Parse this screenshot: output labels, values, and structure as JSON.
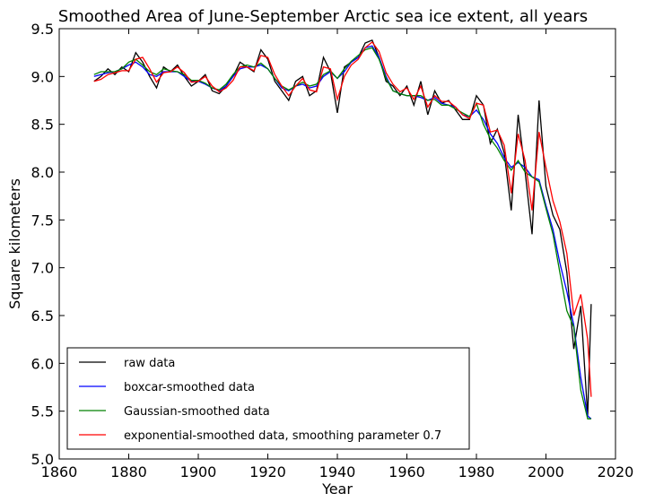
{
  "chart_data": {
    "type": "line",
    "title": "Smoothed Area of June-September   Arctic sea ice extent, all years",
    "xlabel": "Year",
    "ylabel": "Square kilometers",
    "xlim": [
      1860,
      2020
    ],
    "ylim": [
      5.0,
      9.5
    ],
    "xticks": [
      "1860",
      "1880",
      "1900",
      "1920",
      "1940",
      "1960",
      "1980",
      "2000",
      "2020"
    ],
    "yticks": [
      "5.0",
      "5.5",
      "6.0",
      "6.5",
      "7.0",
      "7.5",
      "8.0",
      "8.5",
      "9.0",
      "9.5"
    ],
    "grid": false,
    "legend_position": "lower-left",
    "x": [
      1870,
      1872,
      1874,
      1876,
      1878,
      1880,
      1882,
      1884,
      1886,
      1888,
      1890,
      1892,
      1894,
      1896,
      1898,
      1900,
      1902,
      1904,
      1906,
      1908,
      1910,
      1912,
      1914,
      1916,
      1918,
      1920,
      1922,
      1924,
      1926,
      1928,
      1930,
      1932,
      1934,
      1936,
      1938,
      1940,
      1942,
      1944,
      1946,
      1948,
      1950,
      1952,
      1954,
      1956,
      1958,
      1960,
      1962,
      1964,
      1966,
      1968,
      1970,
      1972,
      1974,
      1976,
      1978,
      1980,
      1982,
      1984,
      1986,
      1988,
      1990,
      1992,
      1994,
      1996,
      1998,
      2000,
      2002,
      2004,
      2006,
      2008,
      2010,
      2012,
      2013
    ],
    "series": [
      {
        "name": "raw data",
        "color": "#000000",
        "values": [
          8.95,
          9.0,
          9.08,
          9.02,
          9.1,
          9.05,
          9.25,
          9.15,
          9.0,
          8.88,
          9.1,
          9.05,
          9.12,
          9.0,
          8.9,
          8.95,
          9.02,
          8.85,
          8.82,
          8.9,
          9.0,
          9.15,
          9.1,
          9.05,
          9.28,
          9.18,
          8.95,
          8.85,
          8.75,
          8.95,
          9.0,
          8.8,
          8.85,
          9.2,
          9.05,
          8.62,
          9.1,
          9.15,
          9.2,
          9.35,
          9.38,
          9.2,
          8.95,
          8.9,
          8.8,
          8.9,
          8.7,
          8.95,
          8.6,
          8.85,
          8.72,
          8.75,
          8.65,
          8.55,
          8.55,
          8.8,
          8.7,
          8.3,
          8.45,
          8.2,
          7.6,
          8.6,
          8.0,
          7.35,
          8.75,
          7.85,
          7.55,
          7.4,
          6.95,
          6.15,
          6.6,
          5.45,
          6.62
        ]
      },
      {
        "name": "boxcar-smoothed data",
        "color": "#0000ff",
        "values": [
          9.0,
          9.02,
          9.04,
          9.05,
          9.08,
          9.12,
          9.15,
          9.1,
          9.02,
          9.0,
          9.05,
          9.05,
          9.05,
          9.0,
          8.95,
          8.95,
          8.92,
          8.88,
          8.85,
          8.9,
          9.0,
          9.08,
          9.1,
          9.1,
          9.12,
          9.08,
          8.98,
          8.88,
          8.85,
          8.9,
          8.92,
          8.88,
          8.9,
          9.0,
          9.05,
          8.98,
          9.05,
          9.15,
          9.2,
          9.3,
          9.32,
          9.2,
          9.0,
          8.85,
          8.82,
          8.8,
          8.8,
          8.78,
          8.75,
          8.78,
          8.72,
          8.7,
          8.68,
          8.6,
          8.58,
          8.65,
          8.55,
          8.4,
          8.3,
          8.15,
          8.05,
          8.1,
          8.05,
          7.95,
          7.92,
          7.65,
          7.4,
          7.05,
          6.75,
          6.4,
          5.85,
          5.45,
          5.42
        ]
      },
      {
        "name": "Gaussian-smoothed data",
        "color": "#008000",
        "values": [
          9.02,
          9.05,
          9.05,
          9.05,
          9.08,
          9.15,
          9.18,
          9.12,
          9.05,
          9.02,
          9.08,
          9.06,
          9.05,
          9.02,
          8.96,
          8.96,
          8.93,
          8.88,
          8.86,
          8.92,
          9.02,
          9.1,
          9.12,
          9.1,
          9.14,
          9.08,
          8.98,
          8.9,
          8.86,
          8.9,
          8.94,
          8.9,
          8.92,
          9.02,
          9.06,
          8.98,
          9.08,
          9.16,
          9.22,
          9.28,
          9.3,
          9.18,
          8.98,
          8.85,
          8.82,
          8.8,
          8.8,
          8.8,
          8.75,
          8.76,
          8.7,
          8.7,
          8.66,
          8.62,
          8.58,
          8.72,
          8.5,
          8.35,
          8.25,
          8.12,
          8.02,
          8.12,
          8.0,
          7.95,
          7.9,
          7.62,
          7.35,
          6.95,
          6.55,
          6.38,
          5.72,
          5.42,
          5.42
        ]
      },
      {
        "name": "exponential-smoothed data, smoothing parameter 0.7",
        "color": "#ff0000",
        "values": [
          8.95,
          8.97,
          9.02,
          9.04,
          9.06,
          9.06,
          9.18,
          9.2,
          9.08,
          8.94,
          9.04,
          9.05,
          9.1,
          9.04,
          8.94,
          8.95,
          9.0,
          8.9,
          8.84,
          8.88,
          8.96,
          9.1,
          9.1,
          9.06,
          9.22,
          9.2,
          9.02,
          8.9,
          8.8,
          8.9,
          8.98,
          8.86,
          8.84,
          9.1,
          9.08,
          8.76,
          9.0,
          9.12,
          9.18,
          9.3,
          9.36,
          9.26,
          9.04,
          8.92,
          8.84,
          8.88,
          8.76,
          8.9,
          8.68,
          8.8,
          8.74,
          8.74,
          8.68,
          8.6,
          8.56,
          8.72,
          8.7,
          8.42,
          8.44,
          8.28,
          7.78,
          8.4,
          8.12,
          7.6,
          8.42,
          8.05,
          7.7,
          7.48,
          7.15,
          6.5,
          6.72,
          6.25,
          5.65
        ]
      }
    ]
  }
}
